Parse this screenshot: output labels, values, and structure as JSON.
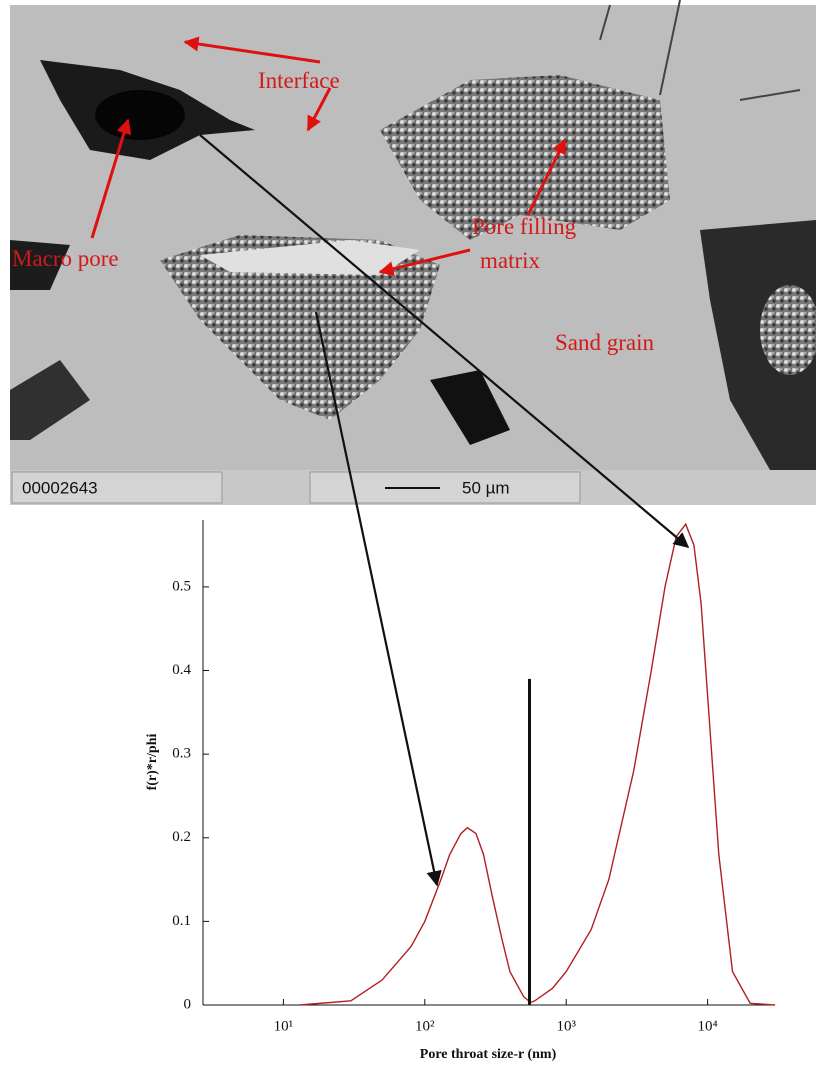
{
  "image_annotations": {
    "interface": "Interface",
    "macro_pore": "Macro pore",
    "pore_filling_matrix": [
      "Pore filling",
      "matrix"
    ],
    "sand_grain": "Sand grain",
    "image_id": "00002643",
    "scale_bar": "50 µm"
  },
  "chart_data": {
    "type": "line",
    "xlabel": "Pore throat size-r (nm)",
    "ylabel": "f(r)*r/phi",
    "log_x": true,
    "color": "#b02020",
    "x": [
      13,
      30,
      50,
      80,
      100,
      130,
      150,
      180,
      200,
      230,
      260,
      300,
      350,
      400,
      500,
      560,
      600,
      800,
      1000,
      1500,
      2000,
      3000,
      4000,
      5000,
      6000,
      7000,
      8000,
      9000,
      10000,
      12000,
      15000,
      20000,
      30000
    ],
    "values": [
      0,
      0.005,
      0.03,
      0.07,
      0.1,
      0.15,
      0.18,
      0.205,
      0.212,
      0.205,
      0.18,
      0.13,
      0.08,
      0.04,
      0.01,
      0.003,
      0.005,
      0.02,
      0.04,
      0.09,
      0.15,
      0.28,
      0.4,
      0.5,
      0.56,
      0.575,
      0.55,
      0.48,
      0.37,
      0.18,
      0.04,
      0.002,
      0
    ],
    "marker_line": {
      "x": 550,
      "y": 0.39
    },
    "xlim": [
      2.7,
      29000
    ],
    "ylim": [
      0,
      0.58
    ],
    "xticks": [
      {
        "value": 10,
        "label": "10¹"
      },
      {
        "value": 100,
        "label": "10²"
      },
      {
        "value": 1000,
        "label": "10³"
      },
      {
        "value": 10000,
        "label": "10⁴"
      }
    ],
    "yticks": [
      0,
      0.1,
      0.2,
      0.3,
      0.4,
      0.5
    ]
  }
}
